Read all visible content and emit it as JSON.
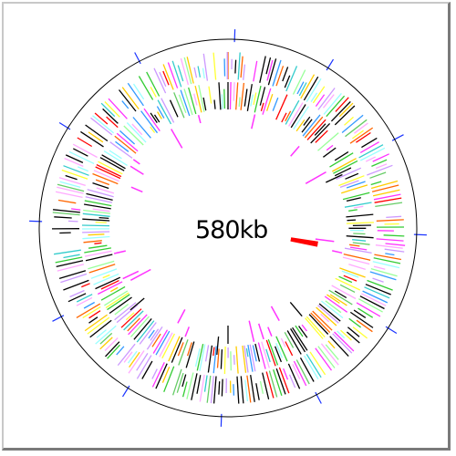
{
  "map": {
    "center_label": "580kb",
    "colors": {
      "outline": "#000000",
      "scale_tick": "#1a33ff",
      "gene_palette": [
        "#000000",
        "#000000",
        "#000000",
        "#ff33ff",
        "#ffaaff",
        "#ffcc00",
        "#ffff33",
        "#33cc33",
        "#99ff99",
        "#33cccc",
        "#99ffff",
        "#ff6600",
        "#ff0000",
        "#cc99ff",
        "#66cc66",
        "#3399ff"
      ],
      "inner_feature": "#ff33ff",
      "highlight_feature": "#ff0000"
    }
  }
}
